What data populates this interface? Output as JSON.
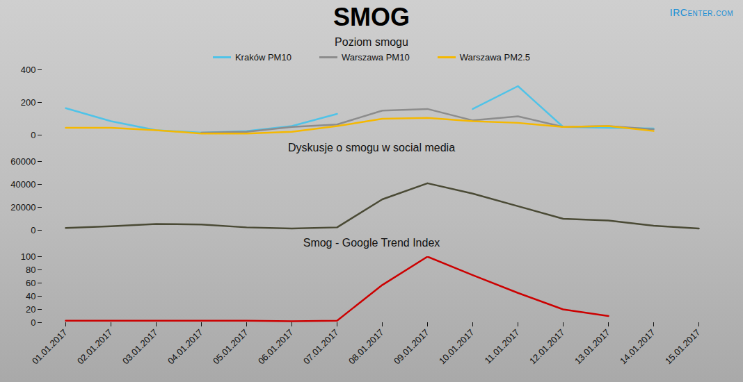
{
  "title": "SMOG",
  "logo": "IRCenter.com",
  "chart_data": [
    {
      "type": "line",
      "title": "Poziom smogu",
      "categories": [
        "01.01.2017",
        "02.01.2017",
        "03.01.2017",
        "04.01.2017",
        "05.01.2017",
        "06.01.2017",
        "07.01.2017",
        "08.01.2017",
        "09.01.2017",
        "10.01.2017",
        "11.01.2017",
        "12.01.2017",
        "13.01.2017",
        "14.01.2017",
        "15.01.2017"
      ],
      "series": [
        {
          "name": "Kraków PM10",
          "color": "#4fc3e8",
          "values": [
            165,
            85,
            30,
            15,
            25,
            55,
            130,
            null,
            null,
            160,
            300,
            50,
            45,
            40,
            null
          ]
        },
        {
          "name": "Warszawa PM10",
          "color": "#8c8c8c",
          "values": [
            null,
            null,
            null,
            15,
            20,
            50,
            65,
            150,
            160,
            90,
            115,
            50,
            55,
            35,
            null
          ]
        },
        {
          "name": "Warszawa PM2.5",
          "color": "#f5b800",
          "values": [
            45,
            45,
            30,
            10,
            10,
            20,
            55,
            100,
            105,
            85,
            75,
            50,
            55,
            25,
            null
          ]
        }
      ],
      "ylim": [
        0,
        400
      ],
      "yticks": [
        0,
        200,
        400
      ],
      "grid": false,
      "legend": "top",
      "tick_labels": "y"
    },
    {
      "type": "line",
      "title": "Dyskusje o smogu w social media",
      "categories": [
        "01.01.2017",
        "02.01.2017",
        "03.01.2017",
        "04.01.2017",
        "05.01.2017",
        "06.01.2017",
        "07.01.2017",
        "08.01.2017",
        "09.01.2017",
        "10.01.2017",
        "11.01.2017",
        "12.01.2017",
        "13.01.2017",
        "14.01.2017",
        "15.01.2017"
      ],
      "series": [
        {
          "name": "Dyskusje o smogu w social media",
          "color": "#4a4a35",
          "values": [
            2000,
            3500,
            5500,
            5000,
            2500,
            1500,
            2500,
            27000,
            41000,
            32000,
            21000,
            10000,
            8500,
            4000,
            1500
          ]
        }
      ],
      "ylim": [
        0,
        60000
      ],
      "yticks": [
        0,
        20000,
        40000,
        60000
      ],
      "grid": false,
      "tick_labels": "y"
    },
    {
      "type": "line",
      "title": "Smog - Google Trend Index",
      "categories": [
        "01.01.2017",
        "02.01.2017",
        "03.01.2017",
        "04.01.2017",
        "05.01.2017",
        "06.01.2017",
        "07.01.2017",
        "08.01.2017",
        "09.01.2017",
        "10.01.2017",
        "11.01.2017",
        "12.01.2017",
        "13.01.2017",
        "14.01.2017",
        "15.01.2017"
      ],
      "series": [
        {
          "name": "Smog - Google Trend Index",
          "color": "#cc0000",
          "values": [
            3,
            3,
            3,
            3,
            3,
            2,
            3,
            57,
            100,
            72,
            45,
            20,
            10,
            null,
            null
          ]
        }
      ],
      "ylim": [
        0,
        100
      ],
      "yticks": [
        0,
        20,
        40,
        60,
        80,
        100
      ],
      "grid": false,
      "tick_labels": true
    }
  ]
}
